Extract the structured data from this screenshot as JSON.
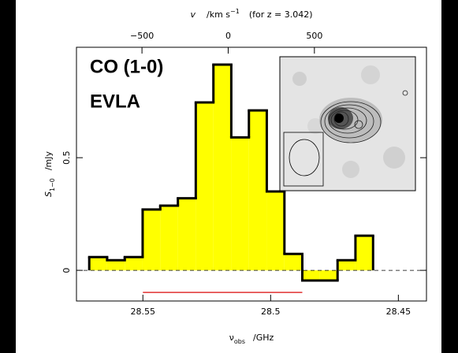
{
  "chart_data": {
    "type": "histogram",
    "annotations": [
      "CO (1-0)",
      "EVLA"
    ],
    "top_axis_label": {
      "symbol": "v",
      "unit": "/km s",
      "exponent": "−1",
      "note": "(for z = 3.042)"
    },
    "x_label": {
      "symbol": "ν",
      "subscript": "obs",
      "unit": "/GHz"
    },
    "y_label": {
      "symbol": "S",
      "subscript": "1−0",
      "unit": "/mJy"
    },
    "bins": [
      28.571,
      28.564,
      28.5571,
      28.5501,
      28.5432,
      28.5363,
      28.5293,
      28.5224,
      28.5154,
      28.5085,
      28.5015,
      28.4946,
      28.4876,
      28.4807,
      28.4738,
      28.4668,
      28.4599
    ],
    "values": [
      0.059,
      0.045,
      0.059,
      0.27,
      0.287,
      0.32,
      0.745,
      0.913,
      0.59,
      0.71,
      0.35,
      0.073,
      -0.045,
      -0.045,
      0.045,
      0.154
    ],
    "color": "#ffff00",
    "line_color": "#000000",
    "xlim": [
      28.576,
      28.439
    ],
    "xticks": [
      28.55,
      28.5,
      28.45
    ],
    "x2lim": [
      -880,
      1150
    ],
    "x2ticks": [
      {
        "value": -500,
        "label": "−500"
      },
      0,
      500
    ],
    "ylim": [
      -0.136,
      0.99
    ],
    "yticks": [
      0,
      0.5
    ],
    "band_line": {
      "x": [
        28.55,
        28.4876
      ],
      "y": -0.098,
      "color": "#e03030"
    }
  }
}
